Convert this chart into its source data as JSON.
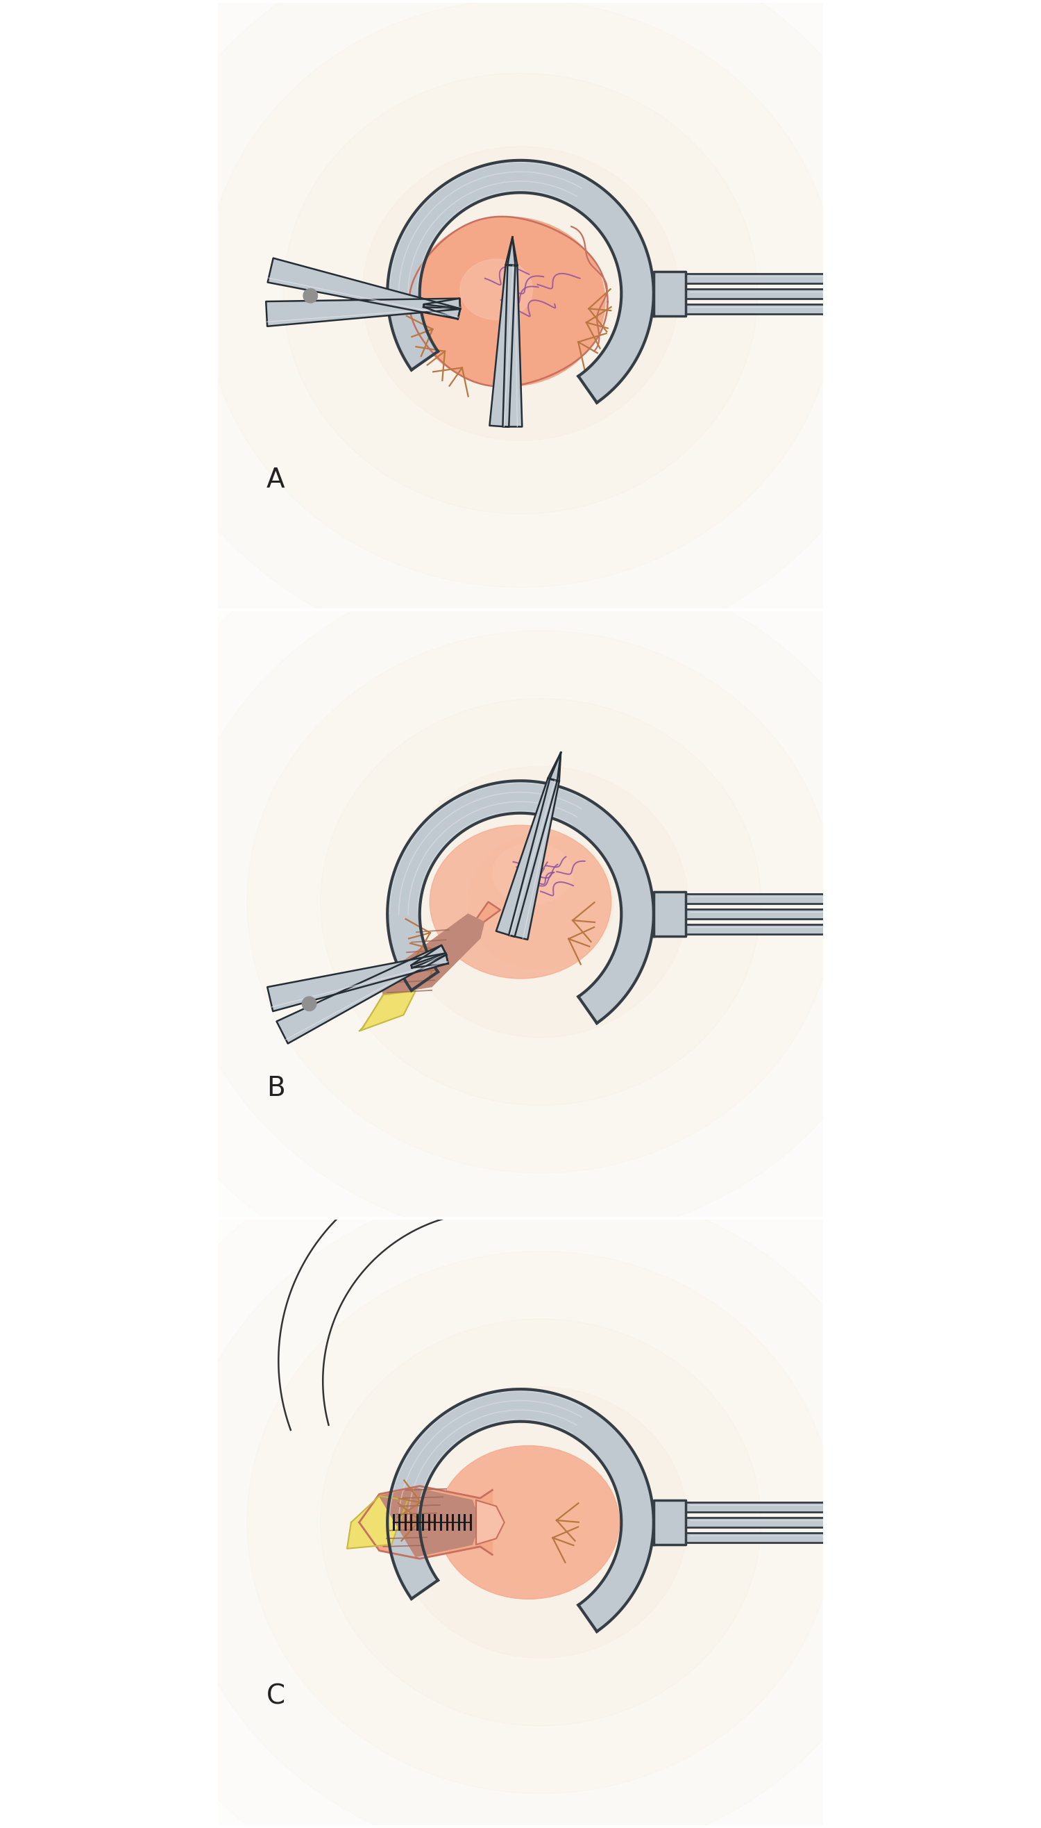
{
  "background_color": "#ffffff",
  "panel_labels": [
    "A",
    "B",
    "C"
  ],
  "panel_label_fontsize": 28,
  "glow_color": "#f5e0c0",
  "tissue_color": "#f5a888",
  "tissue_light": "#f8c0a8",
  "tissue_dark": "#c87060",
  "vessel_color": "#9050a0",
  "muscle_color": "#c08878",
  "muscle_stripe": "#a06858",
  "fat_color": "#f0e070",
  "fat_dark": "#c8b840",
  "retractor_fill": "#c0c8d0",
  "retractor_mid": "#909aa8",
  "retractor_dark": "#353d45",
  "retractor_light": "#e0e4e8",
  "instrument_fill": "#c0c8d0",
  "instrument_light": "#e0e4e8",
  "instrument_dark": "#252d35",
  "suture_color": "#1a1a1a",
  "tag_color": "#b87840",
  "label_color": "#222222"
}
